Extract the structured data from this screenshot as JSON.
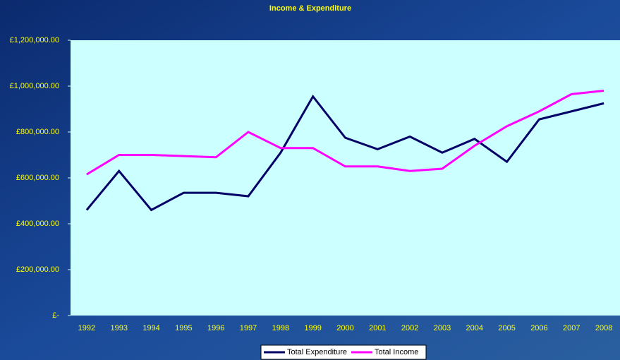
{
  "chart_data": {
    "type": "line",
    "title": "Income & Expenditure",
    "categories": [
      "1992",
      "1993",
      "1994",
      "1995",
      "1996",
      "1997",
      "1998",
      "1999",
      "2000",
      "2001",
      "2002",
      "2003",
      "2004",
      "2005",
      "2006",
      "2007",
      "2008"
    ],
    "series": [
      {
        "name": "Total Expenditure",
        "color": "#000066",
        "values": [
          460000,
          630000,
          460000,
          535000,
          535000,
          520000,
          710000,
          955000,
          775000,
          725000,
          780000,
          710000,
          770000,
          670000,
          855000,
          890000,
          925000
        ]
      },
      {
        "name": "Total Income",
        "color": "#ff00ff",
        "values": [
          615000,
          700000,
          700000,
          695000,
          690000,
          800000,
          730000,
          730000,
          650000,
          650000,
          630000,
          640000,
          740000,
          825000,
          890000,
          965000,
          980000
        ]
      }
    ],
    "ylim": [
      0,
      1200000
    ],
    "yticks": [
      {
        "value": 0,
        "label": "£-"
      },
      {
        "value": 200000,
        "label": "£200,000.00"
      },
      {
        "value": 400000,
        "label": "£400,000.00"
      },
      {
        "value": 600000,
        "label": "£600,000.00"
      },
      {
        "value": 800000,
        "label": "£800,000.00"
      },
      {
        "value": 1000000,
        "label": "£1,000,000.00"
      },
      {
        "value": 1200000,
        "label": "£1,200,000.00"
      }
    ],
    "legend": "bottom"
  }
}
